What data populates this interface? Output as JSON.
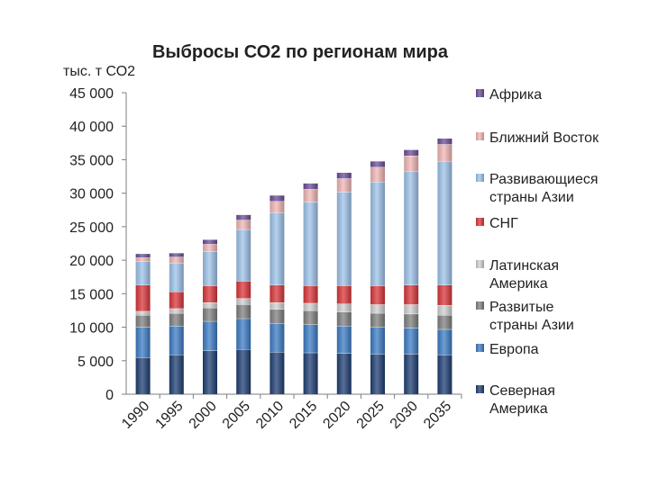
{
  "chart_data": {
    "type": "bar",
    "stacked": true,
    "title": "Выбросы СО2 по регионам мира",
    "ylabel": "тыс. т СО2",
    "xlabel": "",
    "ylim": [
      0,
      45000
    ],
    "yticks": [
      0,
      5000,
      10000,
      15000,
      20000,
      25000,
      30000,
      35000,
      40000,
      45000
    ],
    "ytick_labels": [
      "0",
      "5 000",
      "10 000",
      "15 000",
      "20 000",
      "25 000",
      "30 000",
      "35 000",
      "40 000",
      "45 000"
    ],
    "categories": [
      "1990",
      "1995",
      "2000",
      "2005",
      "2010",
      "2015",
      "2020",
      "2025",
      "2030",
      "2035"
    ],
    "legend_position": "right",
    "series": [
      {
        "name": "Северная Америка",
        "color": "#1f3f73",
        "values": [
          5500,
          5900,
          6500,
          6700,
          6300,
          6200,
          6100,
          6000,
          6000,
          5900
        ]
      },
      {
        "name": "Европа",
        "color": "#3c7cc4",
        "values": [
          4500,
          4300,
          4400,
          4600,
          4300,
          4200,
          4100,
          4000,
          3900,
          3800
        ]
      },
      {
        "name": "Развитые страны Азии",
        "color": "#808080",
        "values": [
          1800,
          1900,
          2000,
          2100,
          2100,
          2100,
          2100,
          2100,
          2100,
          2100
        ]
      },
      {
        "name": "Латинская Америка",
        "color": "#d0d0d0",
        "values": [
          600,
          700,
          800,
          900,
          1000,
          1100,
          1200,
          1300,
          1400,
          1500
        ]
      },
      {
        "name": "СНГ",
        "color": "#d9363a",
        "values": [
          3900,
          2500,
          2500,
          2600,
          2600,
          2600,
          2700,
          2800,
          2900,
          3000
        ]
      },
      {
        "name": "Развивающиеся страны Азии",
        "color": "#9ec3ea",
        "values": [
          3500,
          4300,
          5100,
          7700,
          10800,
          12500,
          14000,
          15500,
          17000,
          18500
        ]
      },
      {
        "name": "Ближний Восток",
        "color": "#f2b6b6",
        "values": [
          600,
          900,
          1100,
          1400,
          1700,
          1900,
          2000,
          2200,
          2300,
          2500
        ]
      },
      {
        "name": "Африка",
        "color": "#6a4e98",
        "values": [
          600,
          600,
          700,
          800,
          900,
          900,
          900,
          900,
          900,
          900
        ]
      }
    ],
    "legend_order": [
      "Африка",
      "Ближний Восток",
      "Развивающиеся страны Азии",
      "СНГ",
      "Латинская Америка",
      "Развитые страны Азии",
      "Европа",
      "Северная Америка"
    ],
    "legend_lines": {
      "Африка": [
        "Африка"
      ],
      "Ближний Восток": [
        "Ближний Восток"
      ],
      "Развивающиеся страны Азии": [
        "Развивающиеся",
        "страны Азии"
      ],
      "СНГ": [
        "СНГ"
      ],
      "Латинская Америка": [
        "Латинская",
        "Америка"
      ],
      "Развитые страны Азии": [
        "Развитые",
        "страны Азии"
      ],
      "Европа": [
        "Европа"
      ],
      "Северная Америка": [
        "Северная",
        "Америка"
      ]
    }
  }
}
